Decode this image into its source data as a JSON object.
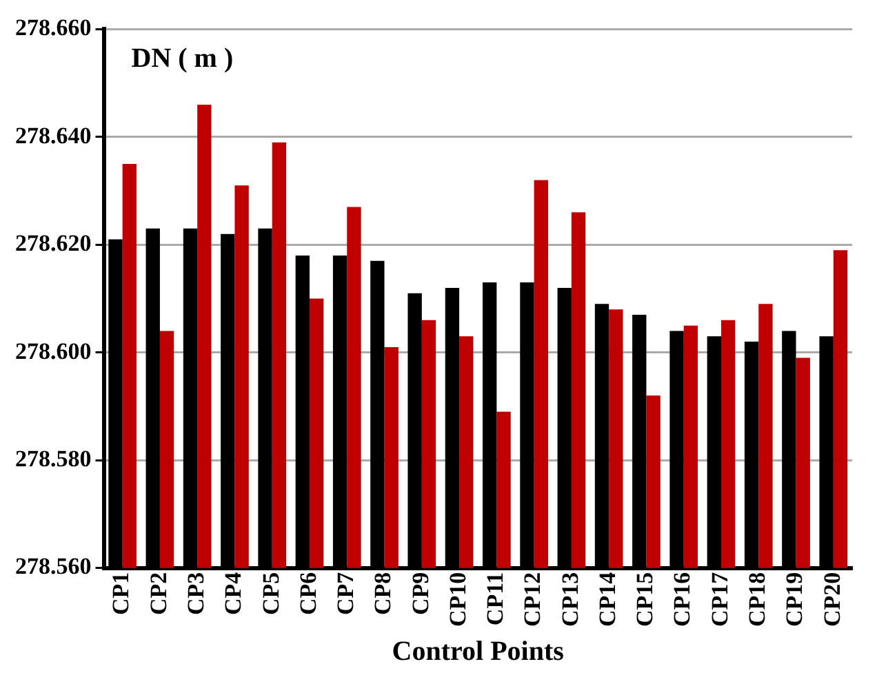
{
  "chart_data": {
    "type": "bar",
    "ylabel": "DN ( m )",
    "xlabel": "Control Points",
    "categories": [
      "CP1",
      "CP2",
      "CP3",
      "CP4",
      "CP5",
      "CP6",
      "CP7",
      "CP8",
      "CP9",
      "CP10",
      "CP11",
      "CP12",
      "CP13",
      "CP14",
      "CP15",
      "CP16",
      "CP17",
      "CP18",
      "CP19",
      "CP20"
    ],
    "series": [
      {
        "color": "#000000",
        "values": [
          278.621,
          278.623,
          278.623,
          278.622,
          278.623,
          278.618,
          278.618,
          278.617,
          278.611,
          278.612,
          278.613,
          278.613,
          278.612,
          278.609,
          278.607,
          278.604,
          278.603,
          278.602,
          278.604,
          278.603
        ]
      },
      {
        "color": "#c00000",
        "values": [
          278.635,
          278.604,
          278.646,
          278.631,
          278.639,
          278.61,
          278.627,
          278.601,
          278.606,
          278.603,
          278.589,
          278.632,
          278.626,
          278.608,
          278.592,
          278.605,
          278.606,
          278.609,
          278.599,
          278.619
        ]
      }
    ],
    "ylim": [
      278.56,
      278.66
    ],
    "yticks": [
      {
        "value": 278.56,
        "label": "278.560"
      },
      {
        "value": 278.58,
        "label": "278.580"
      },
      {
        "value": 278.6,
        "label": "278.600"
      },
      {
        "value": 278.62,
        "label": "278.620"
      },
      {
        "value": 278.64,
        "label": "278.640"
      },
      {
        "value": 278.66,
        "label": "278.660"
      }
    ],
    "grid": "y"
  }
}
